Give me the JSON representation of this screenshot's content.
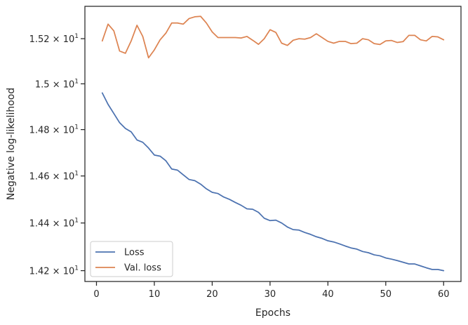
{
  "chart_data": {
    "type": "line",
    "xlabel": "Epochs",
    "ylabel": "Negative log-likelihood",
    "y_scale": "log",
    "xlim": [
      -2,
      63
    ],
    "ylim": [
      14.155,
      15.345
    ],
    "grid": false,
    "legend_position": "lower-left",
    "x_ticks": [
      0,
      10,
      20,
      30,
      40,
      50,
      60
    ],
    "x_tick_labels": [
      "0",
      "10",
      "20",
      "30",
      "40",
      "50",
      "60"
    ],
    "y_ticks": [
      {
        "value": 14.2,
        "mantissa": "1.42",
        "exp": "1"
      },
      {
        "value": 14.4,
        "mantissa": "1.44",
        "exp": "1"
      },
      {
        "value": 14.6,
        "mantissa": "1.46",
        "exp": "1"
      },
      {
        "value": 14.8,
        "mantissa": "1.48",
        "exp": "1"
      },
      {
        "value": 15.0,
        "mantissa": "1.5",
        "exp": "1"
      },
      {
        "value": 15.2,
        "mantissa": "1.52",
        "exp": "1"
      }
    ],
    "x": [
      1,
      2,
      3,
      4,
      5,
      6,
      7,
      8,
      9,
      10,
      11,
      12,
      13,
      14,
      15,
      16,
      17,
      18,
      19,
      20,
      21,
      22,
      23,
      24,
      25,
      26,
      27,
      28,
      29,
      30,
      31,
      32,
      33,
      34,
      35,
      36,
      37,
      38,
      39,
      40,
      41,
      42,
      43,
      44,
      45,
      46,
      47,
      48,
      49,
      50,
      51,
      52,
      53,
      54,
      55,
      56,
      57,
      58,
      59,
      60
    ],
    "series": [
      {
        "name": "Loss",
        "color": "#4c72b0",
        "values": [
          14.96,
          14.91,
          14.87,
          14.83,
          14.805,
          14.79,
          14.755,
          14.745,
          14.72,
          14.69,
          14.685,
          14.665,
          14.63,
          14.625,
          14.605,
          14.585,
          14.58,
          14.565,
          14.545,
          14.53,
          14.525,
          14.51,
          14.5,
          14.487,
          14.475,
          14.46,
          14.458,
          14.445,
          14.42,
          14.41,
          14.412,
          14.4,
          14.383,
          14.372,
          14.37,
          14.36,
          14.352,
          14.342,
          14.335,
          14.325,
          14.32,
          14.312,
          14.303,
          14.295,
          14.29,
          14.28,
          14.275,
          14.266,
          14.262,
          14.253,
          14.248,
          14.242,
          14.235,
          14.228,
          14.228,
          14.22,
          14.212,
          14.205,
          14.205,
          14.2
        ]
      },
      {
        "name": "Val. loss",
        "color": "#dd8452",
        "values": [
          15.19,
          15.265,
          15.235,
          15.145,
          15.135,
          15.19,
          15.26,
          15.21,
          15.115,
          15.15,
          15.195,
          15.225,
          15.27,
          15.27,
          15.265,
          15.29,
          15.298,
          15.3,
          15.27,
          15.23,
          15.205,
          15.205,
          15.205,
          15.205,
          15.203,
          15.21,
          15.193,
          15.175,
          15.2,
          15.24,
          15.228,
          15.18,
          15.17,
          15.193,
          15.2,
          15.198,
          15.205,
          15.222,
          15.205,
          15.188,
          15.18,
          15.188,
          15.188,
          15.178,
          15.18,
          15.2,
          15.195,
          15.178,
          15.174,
          15.19,
          15.192,
          15.183,
          15.187,
          15.215,
          15.215,
          15.195,
          15.19,
          15.21,
          15.208,
          15.195
        ]
      }
    ]
  }
}
